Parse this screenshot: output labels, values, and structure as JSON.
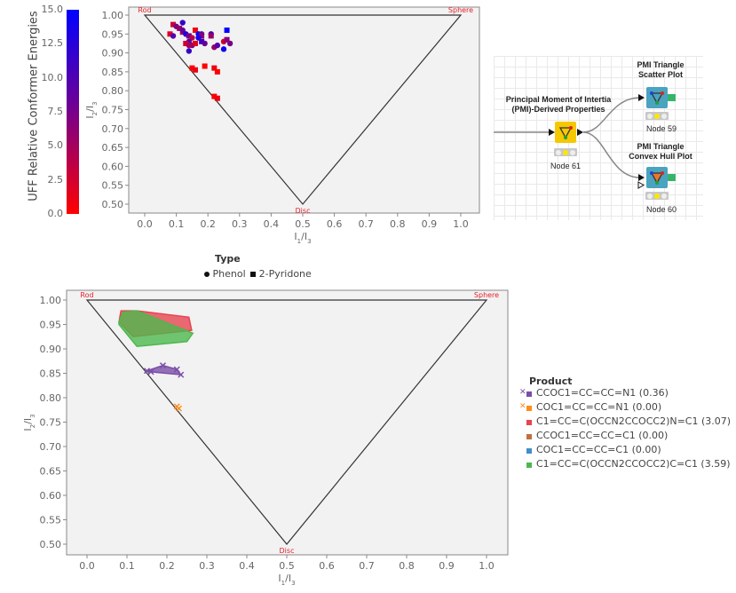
{
  "colorbar": {
    "title": "UFF Relative Conformer Energies",
    "ticks": [
      "15.0",
      "12.5",
      "10.0",
      "7.5",
      "5.0",
      "2.5",
      "0.0"
    ],
    "low_color": "#ff0000",
    "high_color": "#0000ff"
  },
  "workflow": {
    "nodes": [
      {
        "title_line1": "Principal Moment of Intertia",
        "title_line2": "(PMI)-Derived Properties",
        "label": "Node 61",
        "color": "#f5c800"
      },
      {
        "title_line1": "PMI Triangle",
        "title_line2": "Scatter Plot",
        "label": "Node 59",
        "color": "#4aa3bf"
      },
      {
        "title_line1": "PMI Triangle",
        "title_line2": "Convex Hull Plot",
        "label": "Node 60",
        "color": "#4aa3bf"
      }
    ]
  },
  "chart_data": [
    {
      "type": "scatter",
      "title": "",
      "xlabel": "I1/I3",
      "ylabel": "I2/I3",
      "xlim": [
        -0.05,
        1.05
      ],
      "ylim": [
        0.475,
        1.02
      ],
      "xticks": [
        "0.0",
        "0.1",
        "0.2",
        "0.3",
        "0.4",
        "0.5",
        "0.6",
        "0.7",
        "0.8",
        "0.9",
        "1.0"
      ],
      "yticks": [
        "0.50",
        "0.55",
        "0.60",
        "0.65",
        "0.70",
        "0.75",
        "0.80",
        "0.85",
        "0.90",
        "0.95",
        "1.00"
      ],
      "triangle": {
        "rod": [
          0,
          1
        ],
        "sphere": [
          1,
          1
        ],
        "disc": [
          0.5,
          0.5
        ]
      },
      "triangle_labels": {
        "rod": "Rod",
        "sphere": "Sphere",
        "disc": "Disc"
      },
      "grid": false,
      "color_by": "UFF Relative Conformer Energies",
      "legend": {
        "title": "Type",
        "entries": [
          {
            "label": "Phenol",
            "shape": "circle"
          },
          {
            "label": "2-Pyridone",
            "shape": "square"
          }
        ],
        "position": "bottom"
      },
      "points": [
        {
          "x": 0.09,
          "y": 0.975,
          "e": 3,
          "shape": "square"
        },
        {
          "x": 0.1,
          "y": 0.97,
          "e": 8,
          "shape": "circle"
        },
        {
          "x": 0.11,
          "y": 0.965,
          "e": 6,
          "shape": "square"
        },
        {
          "x": 0.12,
          "y": 0.955,
          "e": 5,
          "shape": "square"
        },
        {
          "x": 0.12,
          "y": 0.96,
          "e": 9,
          "shape": "circle"
        },
        {
          "x": 0.12,
          "y": 0.98,
          "e": 12,
          "shape": "circle"
        },
        {
          "x": 0.08,
          "y": 0.95,
          "e": 2,
          "shape": "square"
        },
        {
          "x": 0.09,
          "y": 0.945,
          "e": 10,
          "shape": "circle"
        },
        {
          "x": 0.13,
          "y": 0.95,
          "e": 13,
          "shape": "circle"
        },
        {
          "x": 0.14,
          "y": 0.945,
          "e": 8,
          "shape": "square"
        },
        {
          "x": 0.15,
          "y": 0.94,
          "e": 4,
          "shape": "circle"
        },
        {
          "x": 0.16,
          "y": 0.96,
          "e": 1,
          "shape": "square"
        },
        {
          "x": 0.17,
          "y": 0.95,
          "e": 14,
          "shape": "circle"
        },
        {
          "x": 0.18,
          "y": 0.95,
          "e": 9,
          "shape": "circle"
        },
        {
          "x": 0.18,
          "y": 0.945,
          "e": 7,
          "shape": "square"
        },
        {
          "x": 0.21,
          "y": 0.95,
          "e": 11,
          "shape": "circle"
        },
        {
          "x": 0.21,
          "y": 0.945,
          "e": 6,
          "shape": "square"
        },
        {
          "x": 0.17,
          "y": 0.94,
          "e": 14,
          "shape": "circle"
        },
        {
          "x": 0.14,
          "y": 0.93,
          "e": 10,
          "shape": "circle"
        },
        {
          "x": 0.13,
          "y": 0.925,
          "e": 3,
          "shape": "square"
        },
        {
          "x": 0.15,
          "y": 0.92,
          "e": 8,
          "shape": "circle"
        },
        {
          "x": 0.16,
          "y": 0.925,
          "e": 2,
          "shape": "square"
        },
        {
          "x": 0.14,
          "y": 0.92,
          "e": 5,
          "shape": "circle"
        },
        {
          "x": 0.18,
          "y": 0.93,
          "e": 11,
          "shape": "square"
        },
        {
          "x": 0.19,
          "y": 0.925,
          "e": 9,
          "shape": "circle"
        },
        {
          "x": 0.14,
          "y": 0.905,
          "e": 12,
          "shape": "circle"
        },
        {
          "x": 0.22,
          "y": 0.915,
          "e": 6,
          "shape": "circle"
        },
        {
          "x": 0.23,
          "y": 0.92,
          "e": 10,
          "shape": "circle"
        },
        {
          "x": 0.26,
          "y": 0.96,
          "e": 15,
          "shape": "square"
        },
        {
          "x": 0.25,
          "y": 0.93,
          "e": 3,
          "shape": "circle"
        },
        {
          "x": 0.26,
          "y": 0.935,
          "e": 7,
          "shape": "square"
        },
        {
          "x": 0.27,
          "y": 0.925,
          "e": 8,
          "shape": "circle"
        },
        {
          "x": 0.25,
          "y": 0.91,
          "e": 14,
          "shape": "circle"
        },
        {
          "x": 0.15,
          "y": 0.86,
          "e": 0,
          "shape": "square"
        },
        {
          "x": 0.16,
          "y": 0.855,
          "e": 1,
          "shape": "square"
        },
        {
          "x": 0.19,
          "y": 0.865,
          "e": 0,
          "shape": "square"
        },
        {
          "x": 0.22,
          "y": 0.86,
          "e": 1,
          "shape": "square"
        },
        {
          "x": 0.23,
          "y": 0.85,
          "e": 0,
          "shape": "square"
        },
        {
          "x": 0.22,
          "y": 0.785,
          "e": 0,
          "shape": "square"
        },
        {
          "x": 0.23,
          "y": 0.78,
          "e": 1,
          "shape": "square"
        }
      ]
    },
    {
      "type": "area",
      "title": "",
      "xlabel": "I1/I3",
      "ylabel": "I2/I3",
      "xlim": [
        -0.07,
        1.07
      ],
      "ylim": [
        0.475,
        1.02
      ],
      "xticks": [
        "0.0",
        "0.1",
        "0.2",
        "0.3",
        "0.4",
        "0.5",
        "0.6",
        "0.7",
        "0.8",
        "0.9",
        "1.0"
      ],
      "yticks": [
        "0.50",
        "0.55",
        "0.60",
        "0.65",
        "0.70",
        "0.75",
        "0.80",
        "0.85",
        "0.90",
        "0.95",
        "1.00"
      ],
      "triangle": {
        "rod": [
          0,
          1
        ],
        "sphere": [
          1,
          1
        ],
        "disc": [
          0.5,
          0.5
        ]
      },
      "triangle_labels": {
        "rod": "Rod",
        "sphere": "Sphere",
        "disc": "Disc"
      },
      "grid": false,
      "legend": {
        "title": "Product",
        "position": "right"
      },
      "series": [
        {
          "name": "CCOC1=CC=CC=N1 (0.36)",
          "color": "#7b4fa8",
          "marker": "x",
          "hull": [
            [
              0.15,
              0.855
            ],
            [
              0.19,
              0.866
            ],
            [
              0.225,
              0.858
            ],
            [
              0.235,
              0.847
            ],
            [
              0.16,
              0.853
            ]
          ]
        },
        {
          "name": "COC1=CC=CC=N1 (0.00)",
          "color": "#ff8c1a",
          "marker": "x",
          "hull": [
            [
              0.225,
              0.782
            ],
            [
              0.23,
              0.778
            ]
          ]
        },
        {
          "name": "C1=CC=C(OCCN2CCOCC2)N=C1 (3.07)",
          "color": "#e64550",
          "marker": "square",
          "hull": [
            [
              0.085,
              0.978
            ],
            [
              0.125,
              0.978
            ],
            [
              0.255,
              0.965
            ],
            [
              0.262,
              0.938
            ],
            [
              0.115,
              0.925
            ],
            [
              0.08,
              0.955
            ]
          ]
        },
        {
          "name": "CCOC1=CC=CC=C1 (0.00)",
          "color": "#c07040",
          "marker": "square",
          "hull": []
        },
        {
          "name": "COC1=CC=CC=C1 (0.00)",
          "color": "#3f8fc6",
          "marker": "square",
          "hull": []
        },
        {
          "name": "C1=CC=C(OCCN2CCOCC2)C=C1 (3.59)",
          "color": "#4db84d",
          "marker": "square",
          "hull": [
            [
              0.08,
              0.955
            ],
            [
              0.09,
              0.975
            ],
            [
              0.125,
              0.978
            ],
            [
              0.265,
              0.932
            ],
            [
              0.25,
              0.915
            ],
            [
              0.125,
              0.905
            ],
            [
              0.08,
              0.95
            ]
          ]
        }
      ]
    }
  ]
}
